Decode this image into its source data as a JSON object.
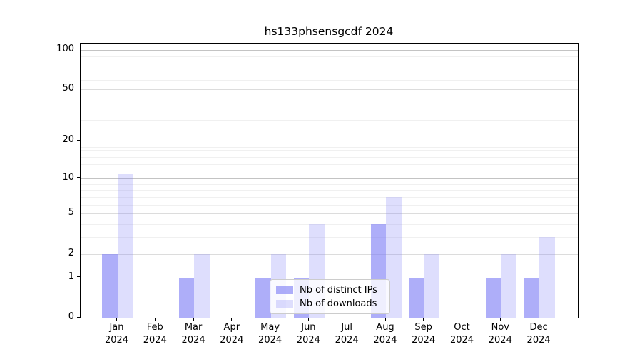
{
  "title": "hs133phsensgcdf 2024",
  "legend": {
    "items": [
      {
        "label": "Nb of distinct IPs",
        "color": "rgba(124,124,246,0.62)"
      },
      {
        "label": "Nb of downloads",
        "color": "rgba(124,124,246,0.25)"
      }
    ]
  },
  "chart_data": {
    "type": "bar",
    "title": "hs133phsensgcdf 2024",
    "categories": [
      "Jan 2024",
      "Feb 2024",
      "Mar 2024",
      "Apr 2024",
      "May 2024",
      "Jun 2024",
      "Jul 2024",
      "Aug 2024",
      "Sep 2024",
      "Oct 2024",
      "Nov 2024",
      "Dec 2024"
    ],
    "series": [
      {
        "name": "Nb of distinct IPs",
        "values": [
          2,
          0,
          1,
          0,
          1,
          1,
          0,
          4,
          1,
          0,
          1,
          1
        ]
      },
      {
        "name": "Nb of downloads",
        "values": [
          11,
          0,
          2,
          0,
          2,
          4,
          0,
          7,
          2,
          0,
          2,
          3
        ]
      }
    ],
    "xlabel": "",
    "ylabel": "",
    "y_scale": "log10(1+v)",
    "y_ticks": [
      0,
      1,
      2,
      5,
      10,
      20,
      50,
      100
    ],
    "y_tick_labels": [
      "0",
      "1",
      "2",
      "5",
      "10",
      "20",
      "50",
      "100"
    ],
    "y_strong_gridlines": [
      1,
      10,
      100
    ],
    "y_minor_gridlines": [
      3,
      4,
      6,
      7,
      8,
      9,
      11,
      12,
      13,
      14,
      15,
      16,
      17,
      18,
      19,
      29,
      39,
      59,
      69,
      79,
      89
    ],
    "ylim": [
      0,
      111
    ],
    "grid": true,
    "legend_position": "lower center",
    "bar_colors": {
      "distinct_ips": "rgba(124,124,246,0.62)",
      "downloads": "rgba(124,124,246,0.25)"
    },
    "background": "#ffffff",
    "spine_color": "#000000"
  }
}
